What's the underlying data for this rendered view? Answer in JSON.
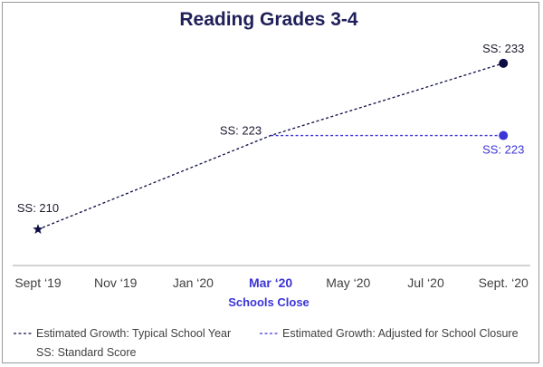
{
  "chart_data": {
    "type": "line",
    "title": "Reading Grades 3-4",
    "xlabel": "",
    "ylabel": "",
    "categories": [
      "Sept ‘19",
      "Nov ‘19",
      "Jan ‘20",
      "Mar ‘20",
      "May ‘20",
      "Jul ‘20",
      "Sept. ‘20"
    ],
    "highlight_category": "Mar ‘20",
    "annotation": "Schools Close",
    "ylim": [
      205,
      238
    ],
    "grid": false,
    "legend_position": "bottom",
    "series": [
      {
        "name": "Estimated Growth: Typical School Year",
        "color": "#0d0d45",
        "style": "dashed",
        "points": [
          {
            "x": "Sept ‘19",
            "y": 210,
            "label": "SS: 210",
            "marker": "star"
          },
          {
            "x": "Mar ‘20",
            "y": 223,
            "label": "SS: 223",
            "marker": "none"
          },
          {
            "x": "Sept. ‘20",
            "y": 233,
            "label": "SS: 233",
            "marker": "circle"
          }
        ]
      },
      {
        "name": "Estimated Growth: Adjusted for School Closure",
        "color": "#3b34d6",
        "style": "dashed",
        "points": [
          {
            "x": "Mar ‘20",
            "y": 223,
            "label": "",
            "marker": "none"
          },
          {
            "x": "Sept. ‘20",
            "y": 223,
            "label": "SS: 223",
            "marker": "circle"
          }
        ]
      }
    ],
    "footnote": "SS: Standard Score"
  }
}
